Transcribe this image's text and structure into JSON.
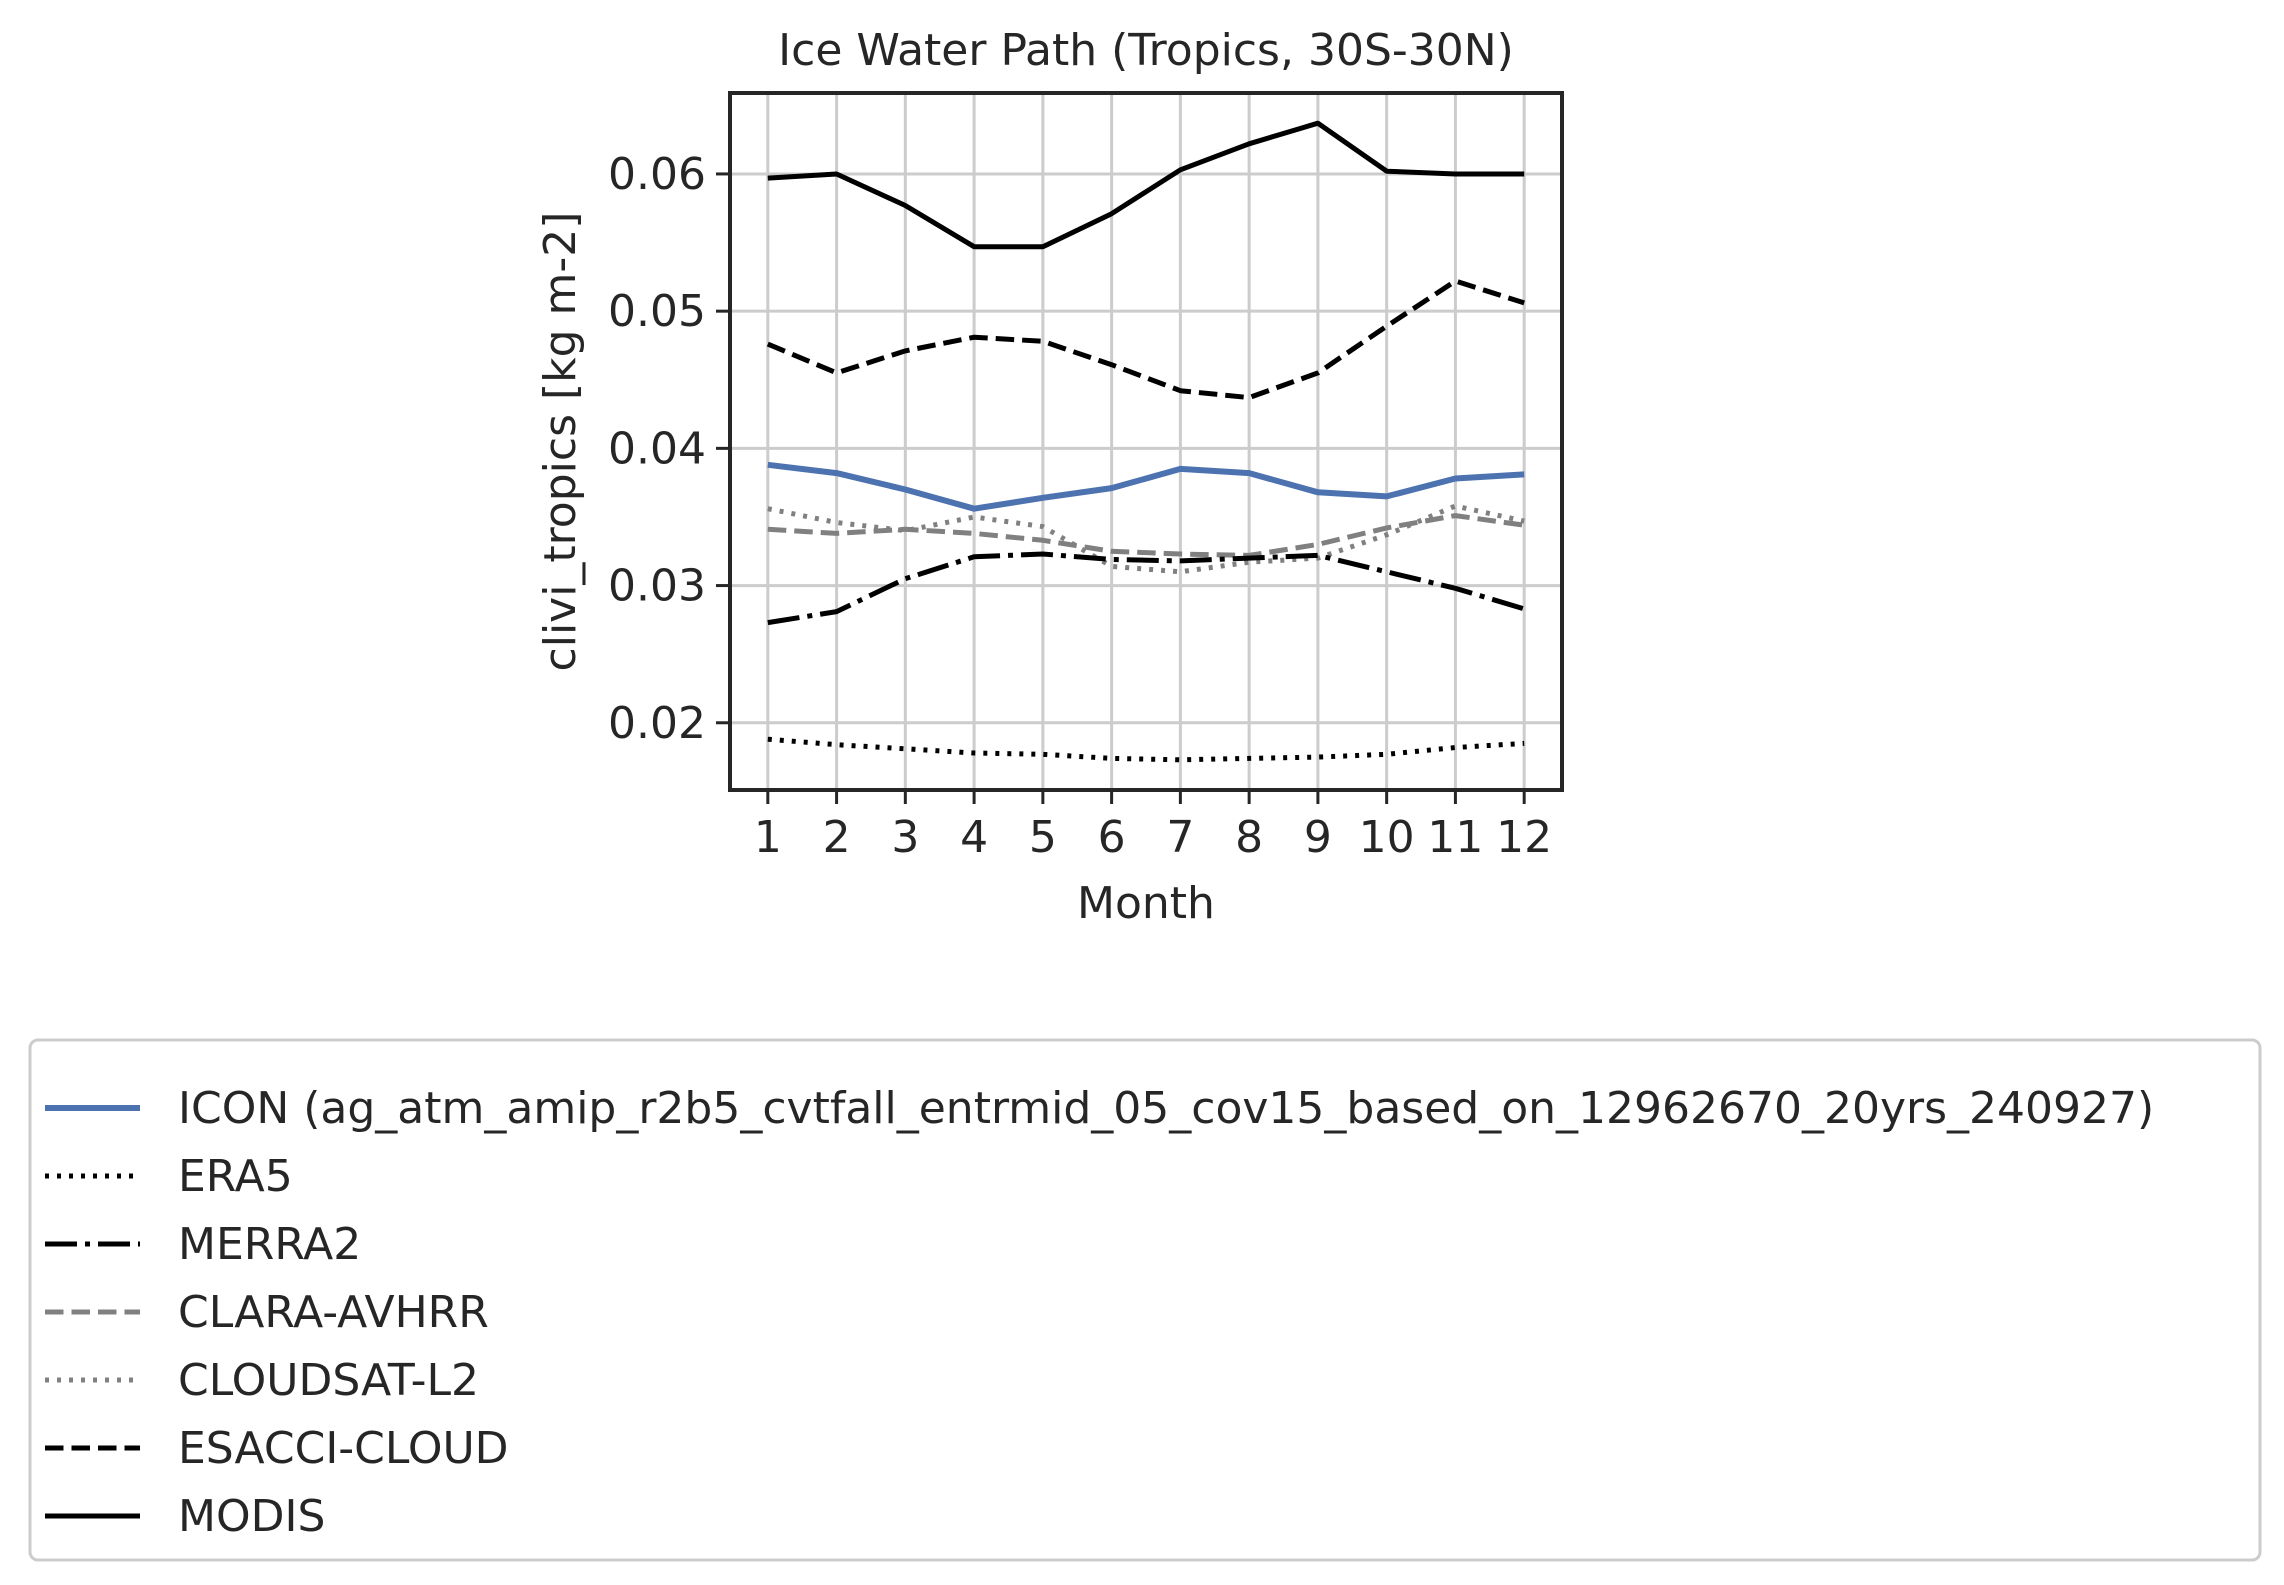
{
  "chart_data": {
    "type": "line",
    "title": "Ice Water Path (Tropics, 30S-30N)",
    "xlabel": "Month",
    "ylabel": "clivi_tropics [kg m-2]",
    "x": [
      1,
      2,
      3,
      4,
      5,
      6,
      7,
      8,
      9,
      10,
      11,
      12
    ],
    "xticks": [
      "1",
      "2",
      "3",
      "4",
      "5",
      "6",
      "7",
      "8",
      "9",
      "10",
      "11",
      "12"
    ],
    "xlim": [
      0.45,
      12.55
    ],
    "ylim": [
      0.0151,
      0.0659
    ],
    "yticks": [
      0.02,
      0.03,
      0.04,
      0.05,
      0.06
    ],
    "ytick_labels": [
      "0.02",
      "0.03",
      "0.04",
      "0.05",
      "0.06"
    ],
    "grid": true,
    "legend_position": "below",
    "series": [
      {
        "name": "ICON (ag_atm_amip_r2b5_cvtfall_entrmid_05_cov15_based_on_12962670_20yrs_240927)",
        "color": "#4c72b0",
        "style": "solid",
        "width": 6,
        "values": [
          0.0388,
          0.0382,
          0.037,
          0.0356,
          0.0364,
          0.0371,
          0.0385,
          0.0382,
          0.0368,
          0.0365,
          0.0378,
          0.0381
        ]
      },
      {
        "name": "ERA5",
        "color": "#000000",
        "style": "dotted",
        "width": 5,
        "values": [
          0.0188,
          0.0184,
          0.0181,
          0.0178,
          0.0177,
          0.0174,
          0.0173,
          0.0174,
          0.0175,
          0.0177,
          0.0182,
          0.0185
        ]
      },
      {
        "name": "MERRA2",
        "color": "#000000",
        "style": "dashdot",
        "width": 5,
        "values": [
          0.0273,
          0.0281,
          0.0305,
          0.0321,
          0.0323,
          0.0319,
          0.0318,
          0.032,
          0.0322,
          0.031,
          0.0298,
          0.0283
        ]
      },
      {
        "name": "CLARA-AVHRR",
        "color": "#808080",
        "style": "dashed",
        "width": 5,
        "values": [
          0.0341,
          0.0338,
          0.0341,
          0.0338,
          0.0333,
          0.0325,
          0.0323,
          0.0322,
          0.033,
          0.0342,
          0.0351,
          0.0344
        ]
      },
      {
        "name": "CLOUDSAT-L2",
        "color": "#808080",
        "style": "dotted",
        "width": 5,
        "values": [
          0.0356,
          0.0346,
          0.034,
          0.035,
          0.0343,
          0.0314,
          0.031,
          0.0317,
          0.032,
          0.0337,
          0.0358,
          0.0347
        ]
      },
      {
        "name": "ESACCI-CLOUD",
        "color": "#000000",
        "style": "dashed",
        "width": 5,
        "values": [
          0.0476,
          0.0455,
          0.0471,
          0.0481,
          0.0478,
          0.0461,
          0.0442,
          0.0437,
          0.0455,
          0.0489,
          0.0522,
          0.0506
        ]
      },
      {
        "name": "MODIS",
        "color": "#000000",
        "style": "solid",
        "width": 5,
        "values": [
          0.0597,
          0.06,
          0.0577,
          0.0547,
          0.0547,
          0.0571,
          0.0603,
          0.0622,
          0.0637,
          0.0602,
          0.06,
          0.06
        ]
      }
    ]
  }
}
